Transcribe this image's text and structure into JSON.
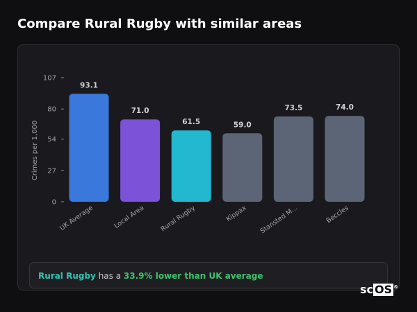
{
  "page": {
    "title": "Compare Rural Rugby with similar areas"
  },
  "chart_data": {
    "type": "bar",
    "title": "",
    "xlabel": "",
    "ylabel": "Crimes per 1,000",
    "ylim": [
      0,
      107
    ],
    "yticks": [
      0,
      27,
      54,
      80,
      107
    ],
    "categories": [
      "UK Average",
      "Local Area",
      "Rural Rugby",
      "Kippax",
      "Stansted M...",
      "Beccles"
    ],
    "values": [
      93.1,
      71.0,
      61.5,
      59.0,
      73.5,
      74.0
    ],
    "value_labels": [
      "93.1",
      "71.0",
      "61.5",
      "59.0",
      "73.5",
      "74.0"
    ],
    "colors": [
      "#3a78dc",
      "#7b52d8",
      "#22b8d0",
      "#5c6575",
      "#5c6575",
      "#5c6575"
    ],
    "grid": false,
    "legend": "none"
  },
  "insight": {
    "area": "Rural Rugby",
    "middle": " has a ",
    "diff": "33.9% lower than UK average"
  },
  "logo": {
    "text": "sc",
    "boxed": "OS",
    "mark": "®"
  }
}
